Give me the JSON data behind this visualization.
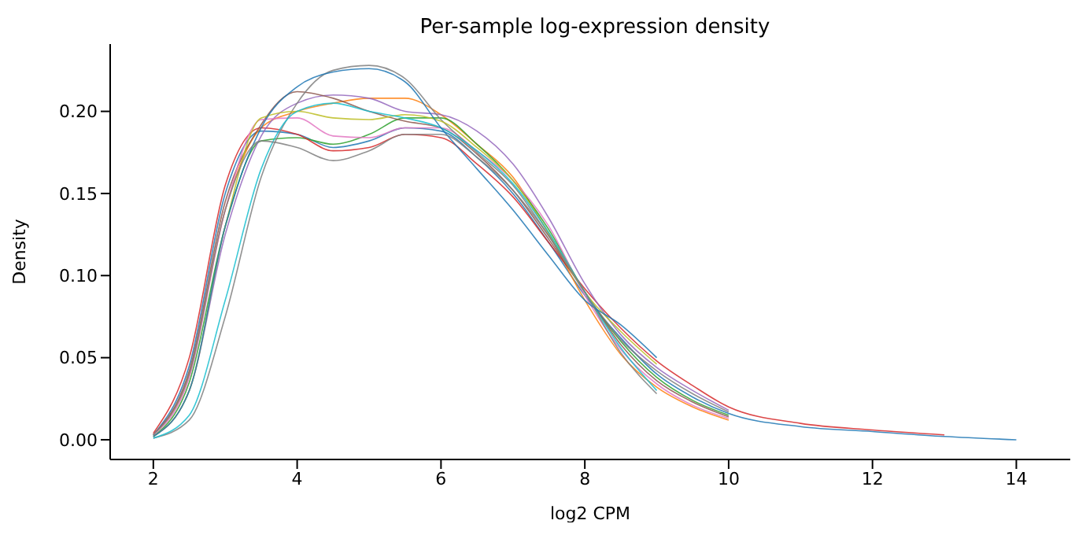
{
  "chart_data": {
    "type": "line",
    "title": "Per-sample log-expression density",
    "xlabel": "log2 CPM",
    "ylabel": "Density",
    "x": [
      2,
      2.5,
      3,
      3.5,
      4,
      4.5,
      5,
      5.5,
      6,
      6.5,
      7,
      7.5,
      8,
      8.5,
      9,
      9.5,
      10,
      11,
      12,
      13,
      14
    ],
    "series": [
      {
        "color": "#1f77b4",
        "values": [
          0.003,
          0.045,
          0.15,
          0.188,
          0.186,
          0.178,
          0.182,
          0.19,
          0.188,
          0.172,
          0.15,
          0.12,
          0.088,
          0.062,
          0.04,
          0.026,
          0.016,
          0.008,
          0.005,
          0.002,
          0
        ]
      },
      {
        "color": "#ff7f0e",
        "values": [
          0.003,
          0.04,
          0.14,
          0.19,
          0.2,
          0.205,
          0.208,
          0.208,
          0.198,
          0.18,
          0.16,
          0.125,
          0.085,
          0.052,
          0.032,
          0.02,
          0.012,
          null,
          null,
          null,
          null
        ]
      },
      {
        "color": "#2ca02c",
        "values": [
          0.002,
          0.035,
          0.13,
          0.182,
          0.184,
          0.18,
          0.186,
          0.196,
          0.196,
          0.18,
          0.158,
          0.128,
          0.09,
          0.06,
          0.038,
          0.024,
          0.015,
          null,
          null,
          null,
          null
        ]
      },
      {
        "color": "#d62728",
        "values": [
          0.004,
          0.05,
          0.155,
          0.19,
          0.186,
          0.176,
          0.178,
          0.186,
          0.184,
          0.168,
          0.148,
          0.12,
          0.092,
          0.068,
          0.048,
          0.033,
          0.02,
          0.01,
          0.006,
          0.003,
          null
        ]
      },
      {
        "color": "#9467bd",
        "values": [
          0.002,
          0.03,
          0.125,
          0.185,
          0.205,
          0.21,
          0.208,
          0.2,
          0.198,
          0.188,
          0.168,
          0.135,
          0.095,
          0.064,
          0.044,
          0.03,
          0.018,
          null,
          null,
          null,
          null
        ]
      },
      {
        "color": "#8c564b",
        "values": [
          0.003,
          0.042,
          0.145,
          0.192,
          0.212,
          0.208,
          0.2,
          0.194,
          0.19,
          0.174,
          0.152,
          0.122,
          0.09,
          0.058,
          0.036,
          0.023,
          0.014,
          null,
          null,
          null,
          null
        ]
      },
      {
        "color": "#e377c2",
        "values": [
          0.003,
          0.038,
          0.14,
          0.195,
          0.196,
          0.185,
          0.184,
          0.19,
          0.19,
          0.176,
          0.158,
          0.13,
          0.088,
          0.055,
          0.034,
          0.021,
          0.013,
          null,
          null,
          null,
          null
        ]
      },
      {
        "color": "#7f7f7f",
        "values": [
          0.001,
          0.012,
          0.075,
          0.16,
          0.205,
          0.225,
          0.228,
          0.22,
          0.195,
          0.175,
          0.155,
          0.124,
          0.09,
          0.061,
          0.042,
          0.028,
          0.017,
          null,
          null,
          null,
          null
        ]
      },
      {
        "color": "#bcbd22",
        "values": [
          0.002,
          0.03,
          0.13,
          0.196,
          0.2,
          0.196,
          0.195,
          0.198,
          0.194,
          0.178,
          0.158,
          0.126,
          0.09,
          0.066,
          0.046,
          null,
          null,
          null,
          null,
          null,
          null
        ]
      },
      {
        "color": "#17becf",
        "values": [
          0.001,
          0.015,
          0.085,
          0.165,
          0.2,
          0.205,
          0.2,
          0.196,
          0.19,
          0.176,
          0.156,
          0.126,
          0.09,
          0.056,
          0.03,
          null,
          null,
          null,
          null,
          null,
          null
        ]
      },
      {
        "color": "#1f77b4",
        "values": [
          0.002,
          0.03,
          0.13,
          0.19,
          0.215,
          0.224,
          0.226,
          0.218,
          0.19,
          0.165,
          0.14,
          0.112,
          0.085,
          0.07,
          0.05,
          null,
          null,
          null,
          null,
          null,
          null
        ]
      },
      {
        "color": "#7f7f7f",
        "values": [
          0.003,
          0.04,
          0.14,
          0.182,
          0.178,
          0.17,
          0.176,
          0.186,
          0.186,
          0.172,
          0.152,
          0.124,
          0.09,
          0.053,
          0.028,
          null,
          null,
          null,
          null,
          null,
          null
        ]
      }
    ],
    "xlim": [
      1.4,
      14.75
    ],
    "ylim": [
      -0.012,
      0.241
    ],
    "xticks": [
      2,
      4,
      6,
      8,
      10,
      12,
      14
    ],
    "yticks": [
      {
        "value": 0,
        "label": "0.00"
      },
      {
        "value": 0.05,
        "label": "0.05"
      },
      {
        "value": 0.1,
        "label": "0.10"
      },
      {
        "value": 0.15,
        "label": "0.15"
      },
      {
        "value": 0.2,
        "label": "0.20"
      }
    ],
    "grid": false,
    "legend": false,
    "marker": "none",
    "line_style": "solid"
  }
}
